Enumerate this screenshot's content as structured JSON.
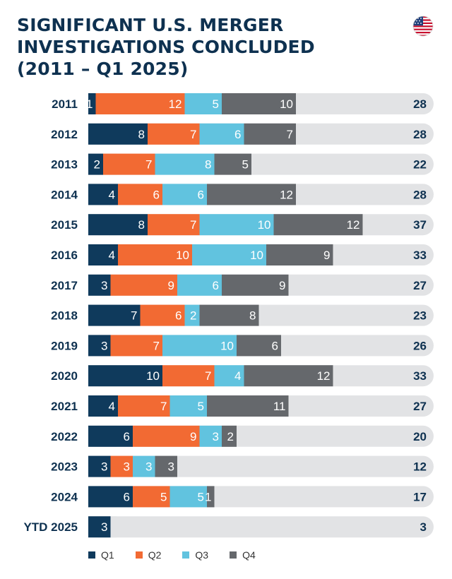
{
  "title_lines": [
    "SIGNIFICANT U.S. MERGER",
    "INVESTIGATIONS CONCLUDED",
    "(2011 – Q1 2025)"
  ],
  "icons": {
    "flag": "us-flag-icon"
  },
  "colors": {
    "Q1": "#0f3a5c",
    "Q2": "#f26a33",
    "Q3": "#61c3df",
    "Q4": "#65686c",
    "track": "#e2e3e5",
    "label": "#0e3150"
  },
  "chart_data": {
    "type": "bar",
    "orientation": "horizontal",
    "stacked": true,
    "categories": [
      "2011",
      "2012",
      "2013",
      "2014",
      "2015",
      "2016",
      "2017",
      "2018",
      "2019",
      "2020",
      "2021",
      "2022",
      "2023",
      "2024",
      "YTD 2025"
    ],
    "series": [
      {
        "name": "Q1",
        "values": [
          1,
          8,
          2,
          4,
          8,
          4,
          3,
          7,
          3,
          10,
          4,
          6,
          3,
          6,
          3
        ]
      },
      {
        "name": "Q2",
        "values": [
          12,
          7,
          7,
          6,
          7,
          10,
          9,
          6,
          7,
          7,
          7,
          9,
          3,
          5,
          0
        ]
      },
      {
        "name": "Q3",
        "values": [
          5,
          6,
          8,
          6,
          10,
          10,
          6,
          2,
          10,
          4,
          5,
          3,
          3,
          5,
          0
        ]
      },
      {
        "name": "Q4",
        "values": [
          10,
          7,
          5,
          12,
          12,
          9,
          9,
          8,
          6,
          12,
          11,
          2,
          3,
          1,
          0
        ]
      }
    ],
    "totals": [
      28,
      28,
      22,
      28,
      37,
      33,
      27,
      23,
      26,
      33,
      27,
      20,
      12,
      17,
      3
    ],
    "legend": [
      "Q1",
      "Q2",
      "Q3",
      "Q4"
    ],
    "legend_position": "bottom"
  }
}
